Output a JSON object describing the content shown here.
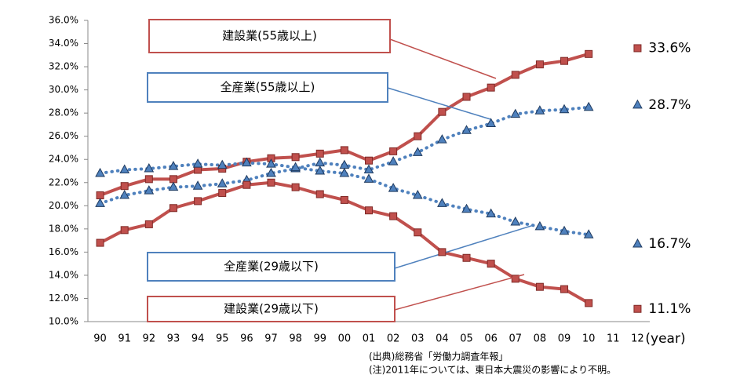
{
  "chart_data": {
    "type": "line",
    "x_label": "(year)",
    "categories": [
      "90",
      "91",
      "92",
      "93",
      "94",
      "95",
      "96",
      "97",
      "98",
      "99",
      "00",
      "01",
      "02",
      "03",
      "04",
      "05",
      "06",
      "07",
      "08",
      "09",
      "10",
      "11",
      "12"
    ],
    "ylim": [
      10,
      36
    ],
    "yticks": [
      {
        "value": 10,
        "label": "10.0%"
      },
      {
        "value": 12,
        "label": "12.0%"
      },
      {
        "value": 14,
        "label": "14.0%"
      },
      {
        "value": 16,
        "label": "16.0%"
      },
      {
        "value": 18,
        "label": "18.0%"
      },
      {
        "value": 20,
        "label": "20.0%"
      },
      {
        "value": 22,
        "label": "22.0%"
      },
      {
        "value": 24,
        "label": "24.0%"
      },
      {
        "value": 26,
        "label": "26.0%"
      },
      {
        "value": 28,
        "label": "28.0%"
      },
      {
        "value": 30,
        "label": "30.0%"
      },
      {
        "value": 32,
        "label": "32.0%"
      },
      {
        "value": 34,
        "label": "34.0%"
      },
      {
        "value": 36,
        "label": "36.0%"
      }
    ],
    "grid": false,
    "series": [
      {
        "name": "建設業(55歳以上)",
        "color": "#c0504d",
        "marker": "square",
        "linestyle": "solid",
        "values": [
          20.9,
          21.7,
          22.3,
          22.3,
          23.1,
          23.2,
          23.8,
          24.1,
          24.2,
          24.5,
          24.8,
          23.9,
          24.7,
          26.0,
          28.1,
          29.4,
          30.2,
          31.3,
          32.2,
          32.5,
          33.1,
          null,
          33.6
        ],
        "value_labels": [
          null,
          null,
          null,
          null,
          null,
          null,
          null,
          null,
          null,
          null,
          null,
          null,
          null,
          null,
          null,
          null,
          null,
          null,
          null,
          null,
          null,
          null,
          "33.6%"
        ]
      },
      {
        "name": "全産業(55歳以上)",
        "color": "#4f81bd",
        "marker": "triangle",
        "linestyle": "dotted",
        "values": [
          20.2,
          20.9,
          21.3,
          21.6,
          21.7,
          21.9,
          22.2,
          22.8,
          23.2,
          23.7,
          23.5,
          23.1,
          23.8,
          24.6,
          25.7,
          26.5,
          27.1,
          27.9,
          28.2,
          28.3,
          28.5,
          null,
          28.7
        ],
        "value_labels": [
          null,
          null,
          null,
          null,
          null,
          null,
          null,
          null,
          null,
          null,
          null,
          null,
          null,
          null,
          null,
          null,
          null,
          null,
          null,
          null,
          null,
          null,
          "28.7%"
        ]
      },
      {
        "name": "全産業(29歳以下)",
        "color": "#4f81bd",
        "marker": "triangle",
        "linestyle": "dotted",
        "values": [
          22.8,
          23.1,
          23.2,
          23.4,
          23.6,
          23.5,
          23.7,
          23.6,
          23.3,
          23.0,
          22.8,
          22.3,
          21.5,
          20.9,
          20.2,
          19.7,
          19.3,
          18.6,
          18.2,
          17.8,
          17.5,
          null,
          16.7
        ],
        "value_labels": [
          null,
          null,
          null,
          null,
          null,
          null,
          null,
          null,
          null,
          null,
          null,
          null,
          null,
          null,
          null,
          null,
          null,
          null,
          null,
          null,
          null,
          null,
          "16.7%"
        ]
      },
      {
        "name": "建設業(29歳以下)",
        "color": "#c0504d",
        "marker": "square",
        "linestyle": "solid",
        "values": [
          16.8,
          17.9,
          18.4,
          19.8,
          20.4,
          21.1,
          21.8,
          22.0,
          21.6,
          21.0,
          20.5,
          19.6,
          19.1,
          17.7,
          16.0,
          15.5,
          15.0,
          13.7,
          13.0,
          12.8,
          11.6,
          null,
          11.1
        ],
        "value_labels": [
          null,
          null,
          null,
          null,
          null,
          null,
          null,
          null,
          null,
          null,
          null,
          null,
          null,
          null,
          null,
          null,
          null,
          null,
          null,
          null,
          null,
          null,
          "11.1%"
        ]
      }
    ],
    "notes": [
      "(出典)総務省「労働力調査年報」",
      "(注)2011年については、東日本大震災の影響により不明。"
    ]
  }
}
